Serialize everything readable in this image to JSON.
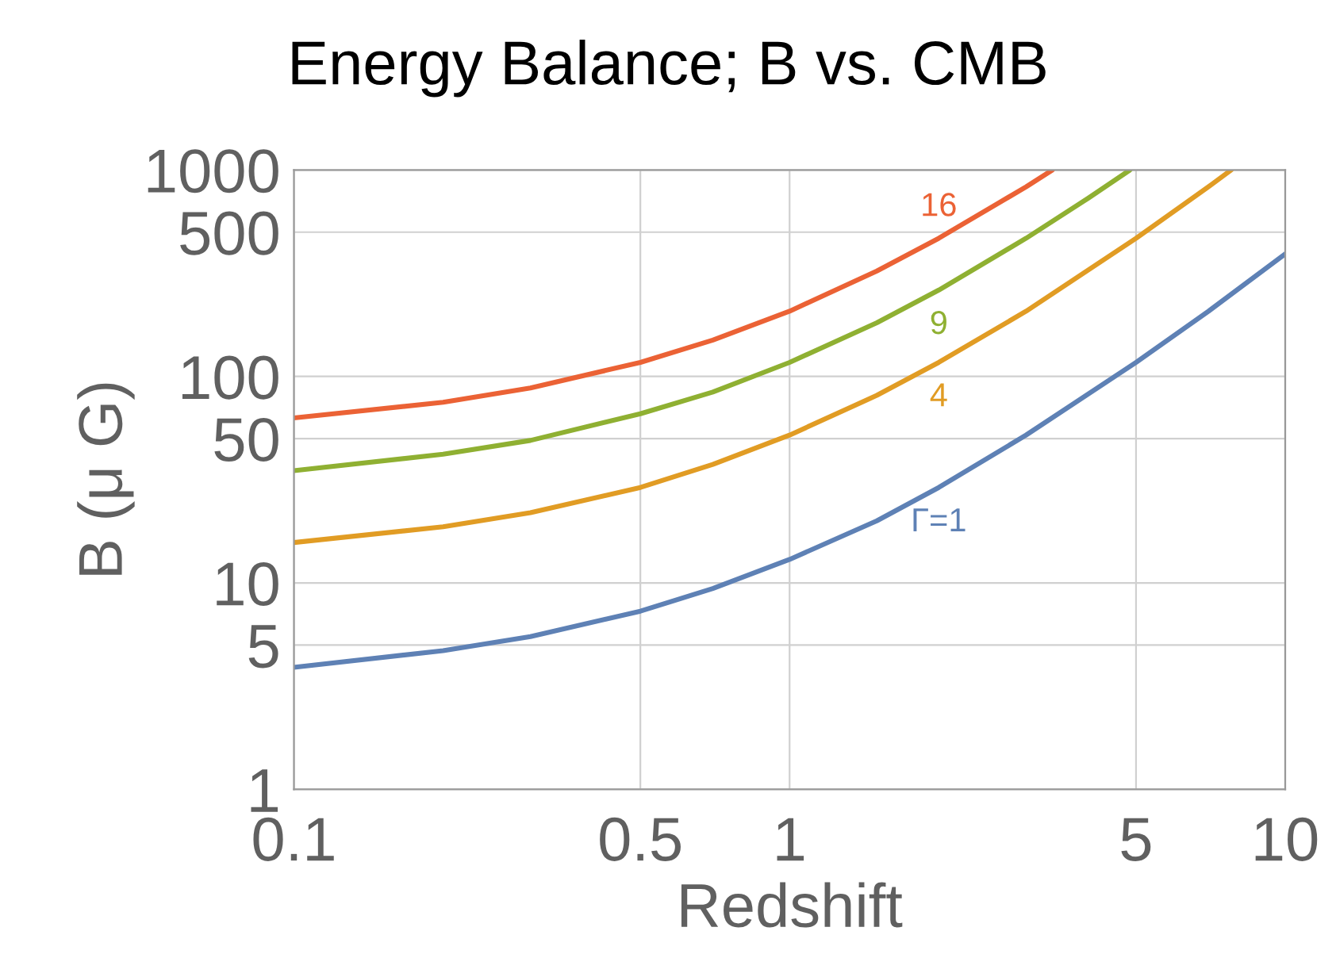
{
  "chart_data": {
    "type": "line",
    "title": "Energy Balance; B vs. CMB",
    "xlabel": "Redshift",
    "ylabel": "B (μ G)",
    "log": "xy",
    "grid": true,
    "xlim": [
      0.1,
      10
    ],
    "xticks": [
      0.1,
      0.5,
      1,
      5,
      10
    ],
    "ylim": [
      1,
      1000
    ],
    "yticks": [
      1,
      5,
      10,
      50,
      100,
      500,
      1000
    ],
    "series": [
      {
        "name": "Γ=1",
        "color": "#5e81b5",
        "x": [
          0.1,
          0.2,
          0.3,
          0.5,
          0.7,
          1,
          1.5,
          2,
          3,
          5,
          7,
          10
        ],
        "values": [
          3.9,
          4.7,
          5.5,
          7.3,
          9.4,
          13,
          20,
          29,
          52,
          117,
          207,
          392
        ]
      },
      {
        "name": "4",
        "color": "#e19c24",
        "x": [
          0.1,
          0.2,
          0.3,
          0.5,
          0.7,
          1,
          1.5,
          2,
          3,
          5,
          7,
          7.78
        ],
        "values": [
          15.7,
          18.7,
          21.9,
          29,
          37.5,
          52,
          81,
          117,
          207,
          467,
          829,
          1000
        ]
      },
      {
        "name": "9",
        "color": "#8fb032",
        "x": [
          0.1,
          0.2,
          0.3,
          0.5,
          0.7,
          1,
          1.5,
          2,
          3,
          4,
          4.86
        ],
        "values": [
          35,
          42,
          49,
          66,
          84,
          117,
          182,
          262,
          467,
          729,
          1000
        ]
      },
      {
        "name": "16",
        "color": "#eb6235",
        "x": [
          0.1,
          0.2,
          0.3,
          0.5,
          0.7,
          1,
          1.5,
          2,
          3,
          3.39
        ],
        "values": [
          63,
          75,
          88,
          117,
          150,
          207,
          324,
          467,
          829,
          1000
        ]
      }
    ]
  }
}
